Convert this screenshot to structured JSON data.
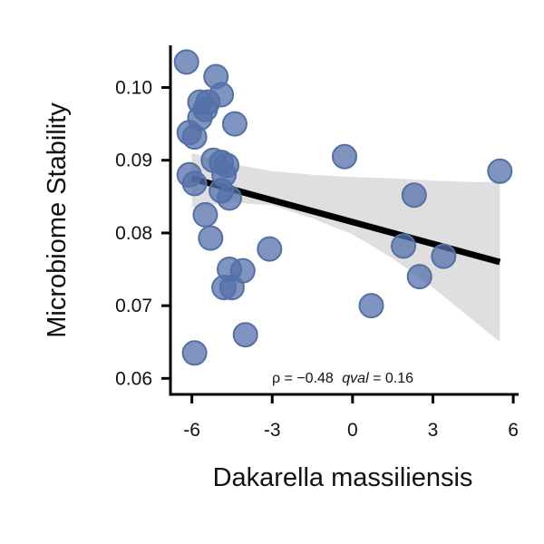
{
  "chart_data": {
    "type": "scatter",
    "xlabel": "Dakarella massiliensis",
    "ylabel": "Microbiome Stability",
    "xlim": [
      -6.8,
      6.2
    ],
    "ylim": [
      0.0578,
      0.1058
    ],
    "x_ticks": [
      -6,
      -3,
      0,
      3,
      6
    ],
    "x_tick_labels": [
      "-6",
      "-3",
      "0",
      "3",
      "6"
    ],
    "y_ticks": [
      0.06,
      0.07,
      0.08,
      0.09,
      0.1
    ],
    "y_tick_labels": [
      "0.06",
      "0.07",
      "0.08",
      "0.09",
      "0.10"
    ],
    "grid": false,
    "annotation": {
      "rho_text": "ρ = −0.48",
      "q_label": "qval",
      "q_text": " = 0.16"
    },
    "point_color": "#5470a8",
    "line_color": "#000000",
    "band_color": "#d9d9d9",
    "points": [
      {
        "x": -6.2,
        "y": 0.1035
      },
      {
        "x": -5.1,
        "y": 0.1015
      },
      {
        "x": -4.9,
        "y": 0.099
      },
      {
        "x": -5.7,
        "y": 0.098
      },
      {
        "x": -5.4,
        "y": 0.098
      },
      {
        "x": -5.5,
        "y": 0.097
      },
      {
        "x": -5.7,
        "y": 0.0958
      },
      {
        "x": -4.4,
        "y": 0.095
      },
      {
        "x": -6.1,
        "y": 0.0938
      },
      {
        "x": -5.9,
        "y": 0.0932
      },
      {
        "x": -5.2,
        "y": 0.09
      },
      {
        "x": -4.9,
        "y": 0.0897
      },
      {
        "x": -4.7,
        "y": 0.0893
      },
      {
        "x": -4.8,
        "y": 0.088
      },
      {
        "x": -6.1,
        "y": 0.088
      },
      {
        "x": -5.9,
        "y": 0.0868
      },
      {
        "x": -4.9,
        "y": 0.0858
      },
      {
        "x": -4.6,
        "y": 0.0848
      },
      {
        "x": -5.5,
        "y": 0.0825
      },
      {
        "x": -5.3,
        "y": 0.0793
      },
      {
        "x": -3.1,
        "y": 0.0778
      },
      {
        "x": -4.6,
        "y": 0.075
      },
      {
        "x": -4.1,
        "y": 0.0748
      },
      {
        "x": -4.8,
        "y": 0.0725
      },
      {
        "x": -4.5,
        "y": 0.0725
      },
      {
        "x": -4.0,
        "y": 0.066
      },
      {
        "x": -5.9,
        "y": 0.0635
      },
      {
        "x": -0.3,
        "y": 0.0905
      },
      {
        "x": 0.7,
        "y": 0.07
      },
      {
        "x": 1.9,
        "y": 0.0782
      },
      {
        "x": 2.3,
        "y": 0.0852
      },
      {
        "x": 2.5,
        "y": 0.074
      },
      {
        "x": 3.4,
        "y": 0.0768
      },
      {
        "x": 5.5,
        "y": 0.0885
      }
    ],
    "regression": {
      "x": [
        -6.0,
        5.5
      ],
      "y": [
        0.0875,
        0.076
      ]
    },
    "confidence_band": {
      "x": [
        -6.0,
        -4.5,
        -3.0,
        -1.5,
        0.0,
        1.5,
        3.0,
        4.5,
        5.5
      ],
      "lower": [
        0.0835,
        0.0842,
        0.0838,
        0.082,
        0.0798,
        0.0765,
        0.0725,
        0.068,
        0.065
      ],
      "upper": [
        0.091,
        0.0895,
        0.0885,
        0.088,
        0.0877,
        0.0875,
        0.0872,
        0.087,
        0.087
      ]
    }
  }
}
